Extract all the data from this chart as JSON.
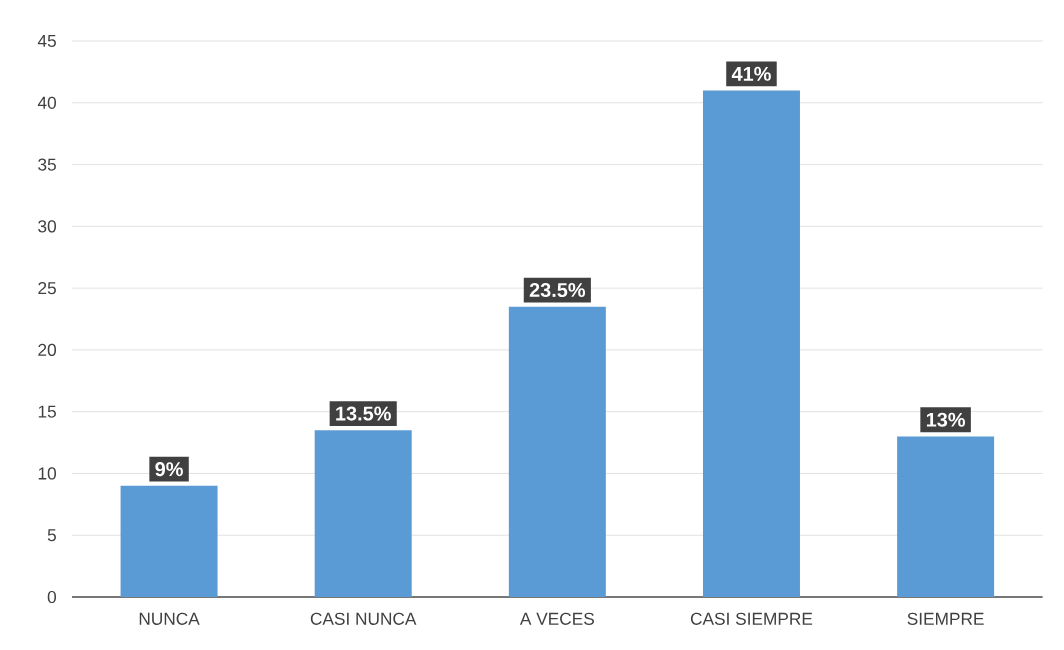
{
  "chart_data": {
    "type": "bar",
    "categories": [
      "NUNCA",
      "CASI NUNCA",
      "A VECES",
      "CASI SIEMPRE",
      "SIEMPRE"
    ],
    "values": [
      9,
      13.5,
      23.5,
      41,
      13
    ],
    "value_labels": [
      "9%",
      "13.5%",
      "23.5%",
      "41%",
      "13%"
    ],
    "color": "#5b9bd5",
    "ylim": [
      0,
      45
    ],
    "yticks": [
      0,
      5,
      10,
      15,
      20,
      25,
      30,
      35,
      40,
      45
    ],
    "grid": "y"
  }
}
